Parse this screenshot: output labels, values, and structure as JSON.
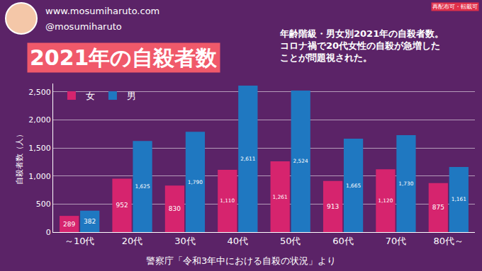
{
  "header": {
    "website": "www.mosumiharuto.com",
    "twitter": "@mosumiharuto",
    "badge": "再配布可・転載可"
  },
  "chart_data": {
    "type": "bar",
    "title": "2021年の自殺者数",
    "subtitle": [
      "年齢階級・男女別2021年の自殺者数。",
      "コロナ禍で20代女性の自殺が急増した",
      "ことが問題視された。"
    ],
    "y_label": "自殺者数（人）",
    "annotations": [
      "警察庁「令和3年中における自殺の状況」より"
    ],
    "categories": [
      "～10代",
      "20代",
      "30代",
      "40代",
      "50代",
      "60代",
      "70代",
      "80代～"
    ],
    "series": [
      {
        "name": "女",
        "color": "#d6246e",
        "values": [
          289,
          952,
          830,
          1110,
          1261,
          913,
          1120,
          875
        ],
        "value_labels": [
          "289",
          "952",
          "830",
          "1,110",
          "1,261",
          "913",
          "1,120",
          "875"
        ]
      },
      {
        "name": "男",
        "color": "#1f78c1",
        "values": [
          382,
          1625,
          1790,
          2611,
          2524,
          1665,
          1730,
          1161
        ],
        "value_labels": [
          "382",
          "1,625",
          "1,790",
          "2,611",
          "2,524",
          "1,665",
          "1,730",
          "1,161"
        ]
      }
    ],
    "ylim": [
      0,
      2650
    ],
    "yticks": [
      0,
      500,
      {
        "value": 1000,
        "label": "1,000"
      },
      {
        "value": 1500,
        "label": "1,500"
      },
      {
        "value": 2000,
        "label": "2,000"
      },
      {
        "value": 2500,
        "label": "2,500"
      }
    ],
    "grid": true,
    "data_labels": true,
    "legend": "top left"
  }
}
